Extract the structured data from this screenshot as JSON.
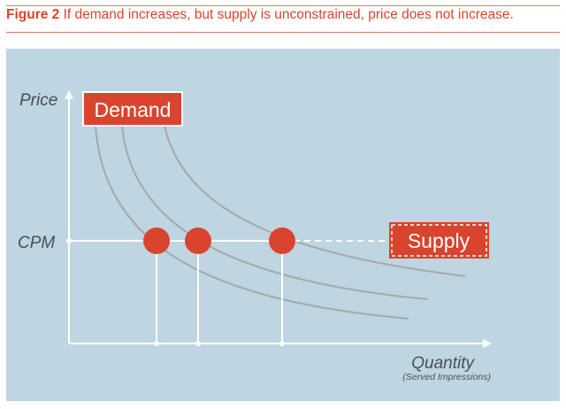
{
  "figure": {
    "label": "Figure 2",
    "text": "If demand increases, but supply is unconstrained, price does not increase."
  },
  "axes": {
    "y_label": "Price",
    "x_label": "Quantity",
    "x_sublabel": "(Served Impressions)",
    "price_level_label": "CPM"
  },
  "boxes": {
    "demand": "Demand",
    "supply": "Supply"
  },
  "colors": {
    "accent": "#d9442e",
    "panel": "#bfd5e1",
    "curve": "#a4a9ac",
    "axis": "#ffffff"
  },
  "diagram": {
    "demand_curves": 3,
    "equilibrium_points": 3
  }
}
